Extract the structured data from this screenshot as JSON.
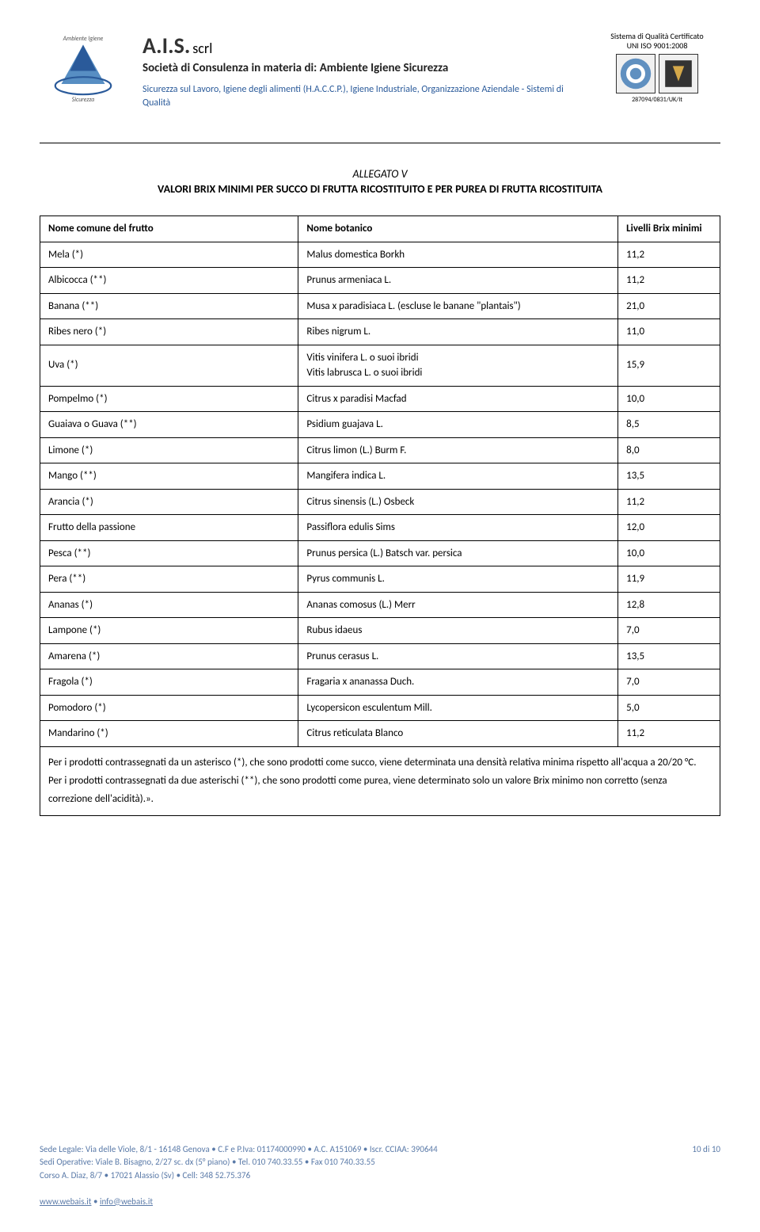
{
  "header": {
    "company_name": "A.I.S.",
    "company_suffix": "scrl",
    "company_subtitle": "Società di Consulenza in materia di: Ambiente Igiene Sicurezza",
    "company_desc": "Sicurezza sul Lavoro, Igiene degli alimenti (H.A.C.C.P.), Igiene Industriale, Organizzazione Aziendale - Sistemi di Qualità",
    "cert_line1": "Sistema di Qualità Certificato",
    "cert_line2": "UNI ISO 9001:2008",
    "cert_id": "287094/0831/UK/It"
  },
  "title": {
    "line1": "ALLEGATO V",
    "line2": "VALORI BRIX MINIMI PER SUCCO DI FRUTTA RICOSTITUITO E PER PUREA DI FRUTTA RICOSTITUITA"
  },
  "table": {
    "headers": [
      "Nome comune del frutto",
      "Nome botanico",
      "Livelli Brix minimi"
    ],
    "rows": [
      [
        "Mela (*)",
        "Malus domestica Borkh",
        "11,2"
      ],
      [
        "Albicocca (**)",
        "Prunus armeniaca L.",
        "11,2"
      ],
      [
        "Banana (**)",
        "Musa x paradisiaca L. (escluse le banane \"plantais\")",
        "21,0"
      ],
      [
        "Ribes nero (*)",
        "Ribes nigrum L.",
        "11,0"
      ],
      [
        "Uva (*)",
        "Vitis vinifera L. o suoi ibridi\nVitis labrusca L. o suoi ibridi",
        "15,9"
      ],
      [
        "Pompelmo (*)",
        "Citrus x paradisi Macfad",
        "10,0"
      ],
      [
        "Guaiava o Guava (**)",
        "Psidium guajava L.",
        "8,5"
      ],
      [
        "Limone (*)",
        "Citrus limon (L.) Burm F.",
        "8,0"
      ],
      [
        "Mango (**)",
        "Mangifera indica L.",
        "13,5"
      ],
      [
        "Arancia (*)",
        "Citrus sinensis (L.) Osbeck",
        "11,2"
      ],
      [
        "Frutto della passione",
        "Passiflora edulis Sims",
        "12,0"
      ],
      [
        "Pesca (**)",
        "Prunus persica (L.) Batsch var. persica",
        "10,0"
      ],
      [
        "Pera (**)",
        "Pyrus communis L.",
        "11,9"
      ],
      [
        "Ananas (*)",
        "Ananas comosus (L.) Merr",
        "12,8"
      ],
      [
        "Lampone (*)",
        "Rubus idaeus",
        "7,0"
      ],
      [
        "Amarena (*)",
        "Prunus cerasus L.",
        "13,5"
      ],
      [
        "Fragola (*)",
        "Fragaria x ananassa Duch.",
        "7,0"
      ],
      [
        "Pomodoro (*)",
        "Lycopersicon esculentum Mill.",
        "5,0"
      ],
      [
        "Mandarino (*)",
        "Citrus reticulata Blanco",
        "11,2"
      ]
    ],
    "footnote": "Per i prodotti contrassegnati da un asterisco (*), che sono prodotti come succo, viene determinata una densità relativa minima rispetto all'acqua a 20/20 °C. Per i prodotti contrassegnati da due asterischi (**), che sono prodotti come purea, viene determinato solo un valore Brix minimo non corretto (senza correzione dell'acidità).»."
  },
  "footer": {
    "line1": "Sede Legale: Via delle Viole, 8/1 - 16148 Genova • C.F e P.Iva: 01174000990 • A.C. A151069 • Iscr. CCIAA: 390644",
    "line2": "Sedi Operative: Viale B. Bisagno, 2/27 sc. dx (5° piano) • Tel. 010 740.33.55 • Fax 010 740.33.55",
    "line3": "Corso A. Diaz, 8/7 • 17021 Alassio (Sv) • Cell: 348 52.75.376",
    "page_num": "10 di 10",
    "web": "www.webais.it",
    "sep": " • ",
    "email": "info@webais.it"
  }
}
